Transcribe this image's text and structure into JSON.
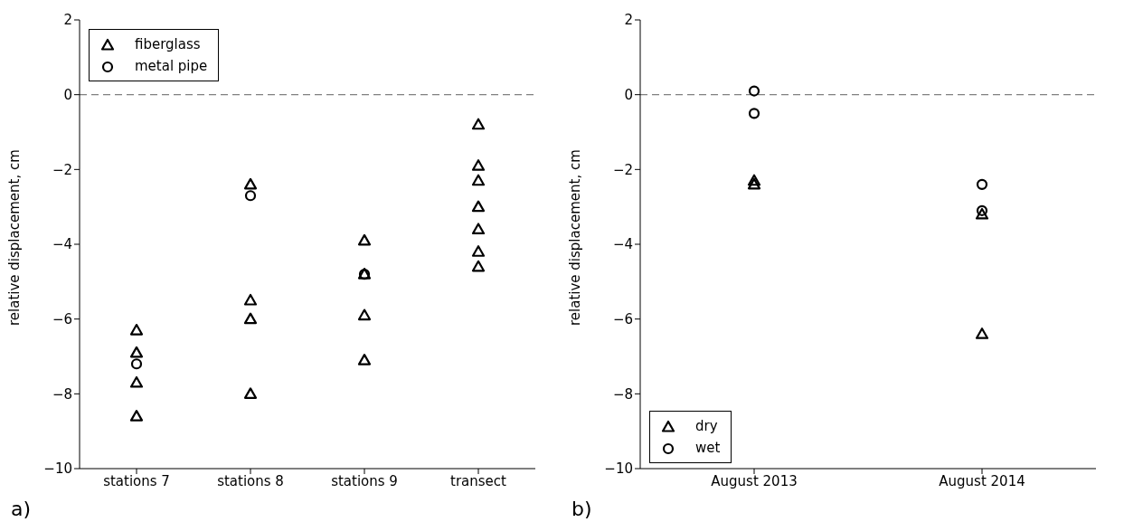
{
  "chart_data": [
    {
      "type": "scatter",
      "ylabel": "relative displacement, cm",
      "categories": [
        "stations 7",
        "stations 8",
        "stations 9",
        "transect"
      ],
      "ylim": [
        -10,
        2
      ],
      "yticks": [
        -10,
        -8,
        -6,
        -4,
        -2,
        0,
        2
      ],
      "grid": false,
      "legend": "top left",
      "annotations": [
        "a)"
      ],
      "ref_lines": [
        {
          "axis": "y",
          "value": 0,
          "color": "#808080",
          "line_style": "dashed"
        }
      ],
      "series": [
        {
          "name": "fiberglass",
          "color": "#000000",
          "marker": "triangle",
          "x": [
            "stations 7",
            "stations 7",
            "stations 7",
            "stations 7",
            "stations 8",
            "stations 8",
            "stations 8",
            "stations 8",
            "stations 9",
            "stations 9",
            "stations 9",
            "stations 9",
            "transect",
            "transect",
            "transect",
            "transect",
            "transect",
            "transect",
            "transect"
          ],
          "values": [
            -6.3,
            -6.9,
            -7.7,
            -8.6,
            -2.4,
            -5.5,
            -6.0,
            -8.0,
            -3.9,
            -4.8,
            -5.9,
            -7.1,
            -0.8,
            -1.9,
            -2.3,
            -3.0,
            -3.6,
            -4.2,
            -4.6
          ]
        },
        {
          "name": "metal pipe",
          "color": "#000000",
          "marker": "circle",
          "x": [
            "stations 7",
            "stations 8",
            "stations 9"
          ],
          "values": [
            -7.2,
            -2.7,
            -4.8
          ]
        }
      ]
    },
    {
      "type": "scatter",
      "ylabel": "relative displacement, cm",
      "categories": [
        "August 2013",
        "August 2014"
      ],
      "ylim": [
        -10,
        2
      ],
      "yticks": [
        -10,
        -8,
        -6,
        -4,
        -2,
        0,
        2
      ],
      "grid": false,
      "legend": "bottom left",
      "annotations": [
        "b)"
      ],
      "ref_lines": [
        {
          "axis": "y",
          "value": 0,
          "color": "#808080",
          "line_style": "dashed"
        }
      ],
      "series": [
        {
          "name": "dry",
          "color": "#000000",
          "marker": "triangle",
          "x": [
            "August 2013",
            "August 2013",
            "August 2014",
            "August 2014"
          ],
          "values": [
            -2.3,
            -2.4,
            -3.2,
            -6.4
          ]
        },
        {
          "name": "wet",
          "color": "#000000",
          "marker": "circle",
          "x": [
            "August 2013",
            "August 2013",
            "August 2014",
            "August 2014"
          ],
          "values": [
            0.1,
            -0.5,
            -2.4,
            -3.1
          ]
        }
      ]
    }
  ]
}
